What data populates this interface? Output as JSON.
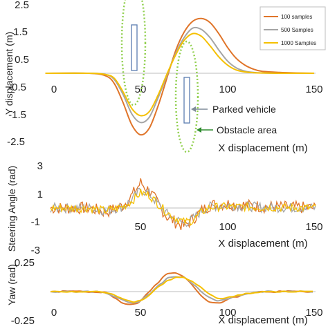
{
  "colors": {
    "s100": "#E0752A",
    "s500": "#A5A5A5",
    "s1000": "#F5C000",
    "obstacle": "#92D050",
    "vehicle": "#5B7DB1",
    "annotation": "#2E8B2E"
  },
  "chart_data": [
    {
      "type": "line",
      "xlabel": "X displacement (m)",
      "ylabel": "Y displacement (m)",
      "xlim": [
        0,
        150
      ],
      "ylim": [
        -2.5,
        2.5
      ],
      "xticks": [
        "0",
        "50",
        "100",
        "150"
      ],
      "yticks": [
        "2.5",
        "1.5",
        "0.5",
        "-0.5",
        "-1.5",
        "-2.5"
      ],
      "legend_position": "top-right",
      "series": [
        {
          "name": "100 samples",
          "color": "s100",
          "x": [
            -5,
            20,
            30,
            35,
            40,
            45,
            50,
            55,
            60,
            65,
            70,
            75,
            80,
            85,
            90,
            95,
            100,
            105,
            110,
            115,
            120,
            130,
            140,
            150
          ],
          "y": [
            0,
            0,
            -0.1,
            -0.4,
            -1.1,
            -1.9,
            -2.25,
            -2.0,
            -1.2,
            -0.2,
            0.8,
            1.5,
            1.9,
            2.0,
            1.85,
            1.45,
            0.95,
            0.55,
            0.3,
            0.15,
            0.07,
            0.03,
            0.01,
            0
          ]
        },
        {
          "name": "500 Samples",
          "color": "s500",
          "x": [
            -5,
            20,
            30,
            35,
            40,
            45,
            50,
            55,
            60,
            65,
            70,
            75,
            80,
            85,
            90,
            95,
            100,
            105,
            110,
            115,
            120,
            130,
            140,
            150
          ],
          "y": [
            0,
            0,
            -0.05,
            -0.25,
            -0.8,
            -1.5,
            -1.8,
            -1.6,
            -0.9,
            -0.1,
            0.7,
            1.3,
            1.65,
            1.6,
            1.3,
            0.85,
            0.45,
            0.2,
            0.08,
            0.03,
            0.01,
            0,
            0,
            0
          ]
        },
        {
          "name": "1000 Samples",
          "color": "s1000",
          "x": [
            -5,
            20,
            30,
            35,
            40,
            45,
            50,
            55,
            60,
            65,
            70,
            75,
            80,
            85,
            90,
            95,
            100,
            105,
            110,
            115,
            120,
            130,
            140,
            150
          ],
          "y": [
            0,
            0,
            -0.05,
            -0.2,
            -0.7,
            -1.3,
            -1.55,
            -1.4,
            -0.8,
            -0.05,
            0.65,
            1.2,
            1.45,
            1.35,
            1.0,
            0.6,
            0.3,
            0.12,
            0.05,
            0.02,
            0.01,
            0,
            0,
            0
          ]
        }
      ],
      "annotations": [
        {
          "label": "Parked vehicle"
        },
        {
          "label": "Obstacle area"
        }
      ]
    },
    {
      "type": "line",
      "xlabel": "X displacement (m)",
      "ylabel": "Steering Angle (rad)",
      "xlim": [
        -3,
        152
      ],
      "ylim": [
        -3,
        3
      ],
      "xticks": [
        "50",
        "100",
        "150"
      ],
      "yticks": [
        "3",
        "1",
        "-1",
        "-3"
      ],
      "series": [
        {
          "name": "100 samples",
          "color": "s100",
          "x": [
            -3,
            20,
            30,
            40,
            45,
            50,
            55,
            60,
            65,
            70,
            75,
            80,
            85,
            90,
            100,
            120,
            152
          ],
          "y": [
            0,
            0,
            -0.3,
            0.2,
            0.9,
            1.8,
            1.2,
            0.3,
            -0.6,
            -1.0,
            -1.3,
            -0.8,
            -0.2,
            0.2,
            0.3,
            0.1,
            0
          ]
        },
        {
          "name": "500 Samples",
          "color": "s500",
          "x": [
            -3,
            20,
            30,
            40,
            45,
            50,
            55,
            60,
            65,
            70,
            75,
            80,
            85,
            90,
            100,
            120,
            152
          ],
          "y": [
            0,
            0,
            -0.2,
            0.1,
            0.6,
            1.3,
            1.0,
            0.3,
            -0.4,
            -0.8,
            -1.1,
            -0.8,
            -0.2,
            0.1,
            0.2,
            0.05,
            0
          ]
        },
        {
          "name": "1000 Samples",
          "color": "s1000",
          "x": [
            -3,
            20,
            30,
            40,
            45,
            50,
            55,
            60,
            65,
            70,
            75,
            80,
            85,
            90,
            100,
            120,
            152
          ],
          "y": [
            0,
            0,
            -0.2,
            0.1,
            0.5,
            1.1,
            0.9,
            0.3,
            -0.3,
            -0.7,
            -1.0,
            -0.9,
            -0.3,
            0.05,
            0.1,
            0.05,
            0
          ]
        }
      ]
    },
    {
      "type": "line",
      "xlabel": "X displacement (m)",
      "ylabel": "Yaw (rad)",
      "xlim": [
        -3,
        152
      ],
      "ylim": [
        -0.25,
        0.25
      ],
      "xticks": [
        "0",
        "50",
        "100",
        "150"
      ],
      "yticks": [
        "0.25",
        "-0.25"
      ],
      "series": [
        {
          "name": "100 samples",
          "color": "s100",
          "x": [
            -3,
            25,
            30,
            35,
            40,
            45,
            50,
            55,
            60,
            65,
            70,
            75,
            80,
            85,
            90,
            95,
            100,
            110,
            120,
            152
          ],
          "y": [
            0,
            0,
            -0.01,
            -0.05,
            -0.1,
            -0.12,
            -0.08,
            0.0,
            0.08,
            0.15,
            0.16,
            0.13,
            0.05,
            -0.04,
            -0.09,
            -0.1,
            -0.07,
            -0.02,
            0,
            0
          ]
        },
        {
          "name": "500 Samples",
          "color": "s500",
          "x": [
            -3,
            25,
            30,
            35,
            40,
            45,
            50,
            55,
            60,
            65,
            70,
            75,
            80,
            85,
            90,
            95,
            100,
            110,
            120,
            152
          ],
          "y": [
            0,
            0,
            -0.01,
            -0.04,
            -0.08,
            -0.1,
            -0.08,
            -0.02,
            0.05,
            0.11,
            0.13,
            0.12,
            0.07,
            0.0,
            -0.06,
            -0.08,
            -0.06,
            -0.02,
            0,
            0
          ]
        },
        {
          "name": "1000 Samples",
          "color": "s1000",
          "x": [
            -3,
            25,
            30,
            35,
            40,
            45,
            50,
            55,
            60,
            65,
            70,
            75,
            80,
            85,
            90,
            95,
            100,
            110,
            120,
            152
          ],
          "y": [
            0,
            0,
            -0.01,
            -0.03,
            -0.06,
            -0.09,
            -0.08,
            -0.03,
            0.04,
            0.09,
            0.12,
            0.12,
            0.09,
            0.03,
            -0.03,
            -0.06,
            -0.05,
            -0.02,
            0,
            0
          ]
        }
      ]
    }
  ]
}
